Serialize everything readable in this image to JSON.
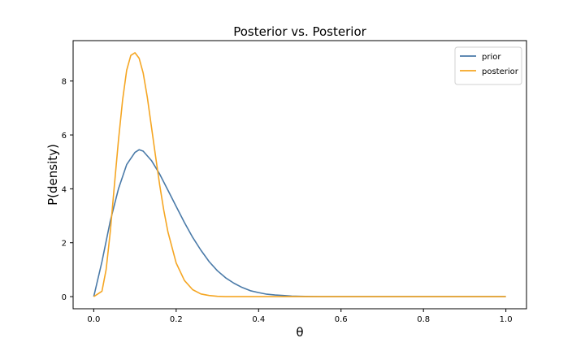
{
  "chart_data": {
    "type": "line",
    "title": "Posterior vs. Posterior",
    "xlabel": "θ",
    "ylabel": "P(density)",
    "xlim": [
      -0.05,
      1.05
    ],
    "ylim": [
      -0.45,
      9.5
    ],
    "xticks": [
      0.0,
      0.2,
      0.4,
      0.6,
      0.8,
      1.0
    ],
    "xtick_labels": [
      "0.0",
      "0.2",
      "0.4",
      "0.6",
      "0.8",
      "1.0"
    ],
    "yticks": [
      0,
      2,
      4,
      6,
      8
    ],
    "ytick_labels": [
      "0",
      "2",
      "4",
      "6",
      "8"
    ],
    "grid": false,
    "legend_position": "top-right",
    "series": [
      {
        "name": "prior",
        "color": "#4a7aa8",
        "x": [
          0.0,
          0.02,
          0.04,
          0.06,
          0.08,
          0.1,
          0.11,
          0.12,
          0.14,
          0.16,
          0.18,
          0.2,
          0.22,
          0.24,
          0.26,
          0.28,
          0.3,
          0.32,
          0.34,
          0.36,
          0.38,
          0.4,
          0.42,
          0.44,
          0.46,
          0.48,
          0.5,
          0.55,
          0.6,
          0.7,
          0.8,
          0.9,
          1.0
        ],
        "y": [
          0.0,
          1.3,
          2.8,
          4.0,
          4.9,
          5.35,
          5.45,
          5.4,
          5.05,
          4.55,
          3.95,
          3.35,
          2.75,
          2.2,
          1.72,
          1.3,
          0.96,
          0.7,
          0.5,
          0.34,
          0.22,
          0.15,
          0.09,
          0.06,
          0.04,
          0.02,
          0.01,
          0.0,
          0.0,
          0.0,
          0.0,
          0.0,
          0.0
        ]
      },
      {
        "name": "posterior",
        "color": "#f5a623",
        "x": [
          0.0,
          0.02,
          0.03,
          0.04,
          0.05,
          0.06,
          0.07,
          0.08,
          0.09,
          0.1,
          0.11,
          0.12,
          0.13,
          0.14,
          0.15,
          0.16,
          0.17,
          0.18,
          0.2,
          0.22,
          0.24,
          0.26,
          0.28,
          0.3,
          0.32,
          0.34,
          0.36,
          0.4,
          0.5,
          0.6,
          0.7,
          0.8,
          0.9,
          1.0
        ],
        "y": [
          0.0,
          0.2,
          1.0,
          2.4,
          4.1,
          5.8,
          7.3,
          8.4,
          8.95,
          9.05,
          8.85,
          8.3,
          7.4,
          6.3,
          5.2,
          4.15,
          3.2,
          2.4,
          1.25,
          0.6,
          0.26,
          0.1,
          0.04,
          0.01,
          0.0,
          0.0,
          0.0,
          0.0,
          0.0,
          0.0,
          0.0,
          0.0,
          0.0,
          0.0
        ]
      }
    ]
  }
}
